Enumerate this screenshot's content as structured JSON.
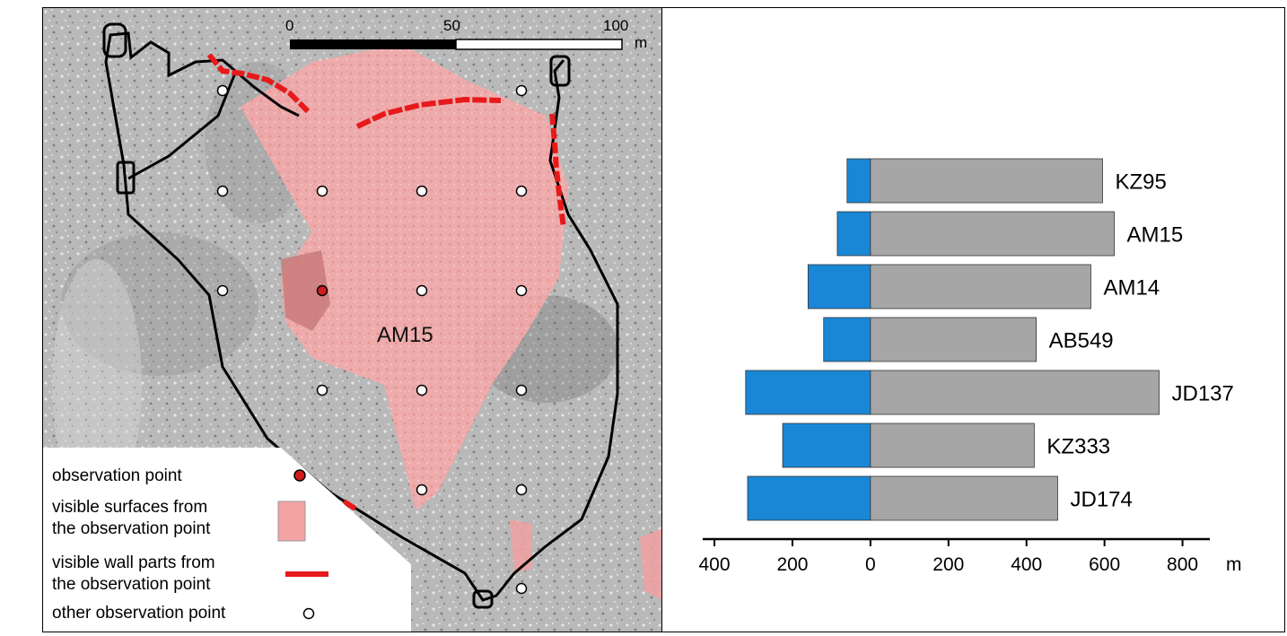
{
  "map": {
    "site_label": "AM15",
    "scale_bar": {
      "ticks": [
        "0",
        "50",
        "100"
      ],
      "unit": "m"
    },
    "legend": [
      {
        "text": "observation point",
        "symbol": "red-dot"
      },
      {
        "text": "visible surfaces from",
        "text2": "the observation point",
        "symbol": "pink-square"
      },
      {
        "text": "visible wall parts from",
        "text2": "the observation point",
        "symbol": "red-line"
      },
      {
        "text": "other observation point",
        "symbol": "white-dot"
      }
    ],
    "colors": {
      "visible_surface": "#f4a3a3",
      "visible_wall": "#e8191a",
      "observation_point": "#d01c1c",
      "terrain": "#b8b8b8",
      "wall_outline": "#000000"
    }
  },
  "chart_data": {
    "type": "bar",
    "orientation": "horizontal",
    "categories": [
      "KZ95",
      "AM15",
      "AM14",
      "AB549",
      "JD137",
      "KZ333",
      "JD174"
    ],
    "series": [
      {
        "values": [
          -60,
          -85,
          -160,
          -120,
          -320,
          -225,
          -315
        ],
        "color": "#1a87d6"
      },
      {
        "values": [
          595,
          625,
          565,
          425,
          740,
          420,
          480
        ],
        "color": "#a6a6a6"
      }
    ],
    "xticks": [
      "400",
      "200",
      "0",
      "200",
      "400",
      "600",
      "800"
    ],
    "xtick_values": [
      -400,
      -200,
      0,
      200,
      400,
      600,
      800
    ],
    "x_unit": "m",
    "xlim": [
      -430,
      870
    ]
  }
}
